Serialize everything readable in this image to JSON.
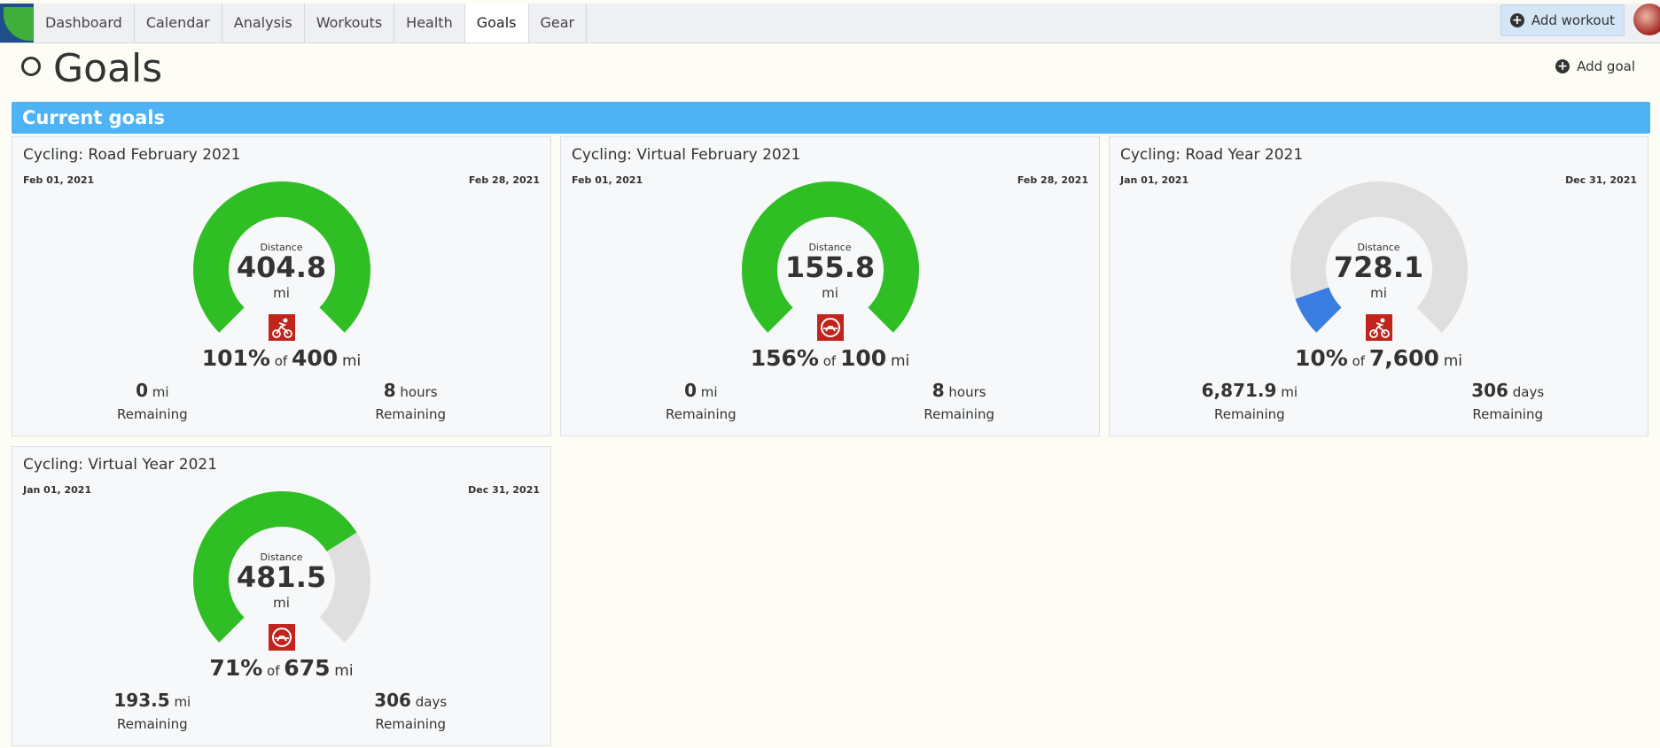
{
  "nav": {
    "items": [
      "Dashboard",
      "Calendar",
      "Analysis",
      "Workouts",
      "Health",
      "Goals",
      "Gear"
    ],
    "active": 5,
    "add_workout": "Add workout"
  },
  "header": {
    "title": "Goals",
    "add_goal": "Add goal"
  },
  "section": {
    "title": "Current goals"
  },
  "goals": [
    {
      "title": "Cycling: Road February 2021",
      "start": "Feb 01, 2021",
      "end": "Feb 28, 2021",
      "metric": "Distance",
      "distance": 404.8,
      "unit": "mi",
      "icon": "road",
      "percent": "101%",
      "of": "of",
      "target": {
        "value": 400,
        "label": "400"
      },
      "target_unit": "mi",
      "remaining_distance": {
        "value": "0",
        "unit": "mi",
        "label": "Remaining"
      },
      "remaining_time": {
        "value": "8",
        "unit": "hours",
        "label": "Remaining"
      },
      "color": "#2fbf24"
    },
    {
      "title": "Cycling: Virtual February 2021",
      "start": "Feb 01, 2021",
      "end": "Feb 28, 2021",
      "metric": "Distance",
      "distance": 155.8,
      "unit": "mi",
      "icon": "virtual",
      "percent": "156%",
      "of": "of",
      "target": {
        "value": 100,
        "label": "100"
      },
      "target_unit": "mi",
      "remaining_distance": {
        "value": "0",
        "unit": "mi",
        "label": "Remaining"
      },
      "remaining_time": {
        "value": "8",
        "unit": "hours",
        "label": "Remaining"
      },
      "color": "#2fbf24"
    },
    {
      "title": "Cycling: Road Year 2021",
      "start": "Jan 01, 2021",
      "end": "Dec 31, 2021",
      "metric": "Distance",
      "distance": 728.1,
      "unit": "mi",
      "icon": "road",
      "percent": "10%",
      "of": "of",
      "target": {
        "value": 7600,
        "label": "7,600"
      },
      "target_unit": "mi",
      "remaining_distance": {
        "value": "6,871.9",
        "unit": "mi",
        "label": "Remaining"
      },
      "remaining_time": {
        "value": "306",
        "unit": "days",
        "label": "Remaining"
      },
      "color": "#3a7de0"
    },
    {
      "title": "Cycling: Virtual Year 2021",
      "start": "Jan 01, 2021",
      "end": "Dec 31, 2021",
      "metric": "Distance",
      "distance": 481.5,
      "unit": "mi",
      "icon": "virtual",
      "percent": "71%",
      "of": "of",
      "target": {
        "value": 675,
        "label": "675"
      },
      "target_unit": "mi",
      "remaining_distance": {
        "value": "193.5",
        "unit": "mi",
        "label": "Remaining"
      },
      "remaining_time": {
        "value": "306",
        "unit": "days",
        "label": "Remaining"
      },
      "color": "#2fbf24"
    }
  ]
}
